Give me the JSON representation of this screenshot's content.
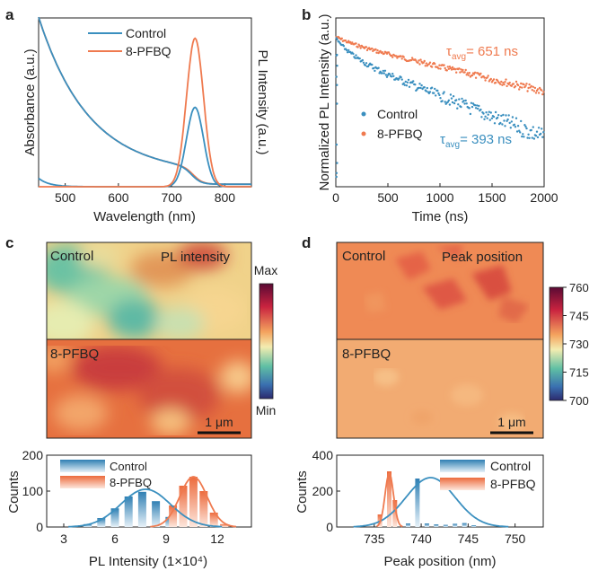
{
  "colors": {
    "control": "#3a8fbf",
    "pfbq": "#ef7a4f",
    "axis": "#222222"
  },
  "chart_data": [
    {
      "panel": "a",
      "type": "line",
      "xlabel": "Wavelength (nm)",
      "ylabel": "Absorbance (a.u.)",
      "ylabel_right": "PL Intensity (a.u.)",
      "xlim": [
        450,
        850
      ],
      "xticks": [
        500,
        600,
        700,
        800
      ],
      "legend": [
        "Control",
        "8-PFBQ"
      ],
      "legend_position": "top-right"
    },
    {
      "panel": "b",
      "type": "scatter",
      "xlabel": "Time (ns)",
      "ylabel": "Normalized PL Intensity (a.u.)",
      "xlim": [
        0,
        2000
      ],
      "xticks": [
        0,
        500,
        1000,
        1500,
        2000
      ],
      "y_scale": "log",
      "legend": [
        "Control",
        "8-PFBQ"
      ],
      "legend_position": "center-right",
      "annotations": [
        {
          "series": "8-PFBQ",
          "symbol": "τ",
          "sub": "avg",
          "text": "= 651 ns",
          "tau_ns": 651
        },
        {
          "series": "Control",
          "symbol": "τ",
          "sub": "avg",
          "text": "= 393 ns",
          "tau_ns": 393
        }
      ]
    },
    {
      "panel": "c",
      "type": "heatmap",
      "map_labels": [
        "Control",
        "8-PFBQ"
      ],
      "map_title": "PL intensity",
      "colorbar": {
        "max_label": "Max",
        "min_label": "Min"
      },
      "scalebar": "1 μm"
    },
    {
      "panel": "d",
      "type": "heatmap",
      "map_labels": [
        "Control",
        "8-PFBQ"
      ],
      "map_title": "Peak position",
      "colorbar": {
        "ticks": [
          760,
          745,
          730,
          715,
          700
        ],
        "range": [
          700,
          760
        ]
      },
      "scalebar": "1 μm"
    },
    {
      "panel": "c",
      "type": "bar",
      "xlabel": "PL Intensity (1×10⁴)",
      "ylabel": "Counts",
      "xlim": [
        2,
        14
      ],
      "xticks": [
        3,
        6,
        9,
        12
      ],
      "ylim": [
        0,
        200
      ],
      "yticks": [
        0,
        100,
        200
      ],
      "legend": [
        "Control",
        "8-PFBQ"
      ],
      "series": [
        {
          "name": "Control",
          "x": [
            4.4,
            5.2,
            6.0,
            6.8,
            7.6,
            8.4,
            9.2,
            10.0
          ],
          "values": [
            8,
            25,
            52,
            85,
            98,
            72,
            28,
            8
          ]
        },
        {
          "name": "8-PFBQ",
          "x": [
            9.4,
            10.0,
            10.6,
            11.2,
            11.8,
            12.4
          ],
          "values": [
            60,
            115,
            140,
            100,
            40,
            8
          ]
        }
      ],
      "fits": [
        {
          "name": "Control",
          "mu": 7.8,
          "sigma": 1.45,
          "amp": 105
        },
        {
          "name": "8-PFBQ",
          "mu": 10.6,
          "sigma": 0.8,
          "amp": 140
        }
      ]
    },
    {
      "panel": "d",
      "type": "bar",
      "xlabel": "Peak position (nm)",
      "ylabel": "Counts",
      "xlim": [
        731,
        753
      ],
      "xticks": [
        735,
        740,
        745,
        750
      ],
      "ylim": [
        0,
        400
      ],
      "yticks": [
        0,
        200,
        400
      ],
      "legend": [
        "Control",
        "8-PFBQ"
      ],
      "series": [
        {
          "name": "Control",
          "x": [
            738.6,
            739.6,
            740.6,
            741.6,
            742.6,
            743.6,
            744.6,
            745.6
          ],
          "values": [
            20,
            270,
            20,
            15,
            12,
            18,
            22,
            10
          ]
        },
        {
          "name": "8-PFBQ",
          "x": [
            735.6,
            736.6,
            737.2
          ],
          "values": [
            70,
            310,
            150
          ]
        }
      ],
      "fits": [
        {
          "name": "Control",
          "mu": 741,
          "sigma": 2.6,
          "amp": 275
        },
        {
          "name": "8-PFBQ",
          "mu": 736.6,
          "sigma": 0.45,
          "amp": 300
        }
      ]
    }
  ]
}
